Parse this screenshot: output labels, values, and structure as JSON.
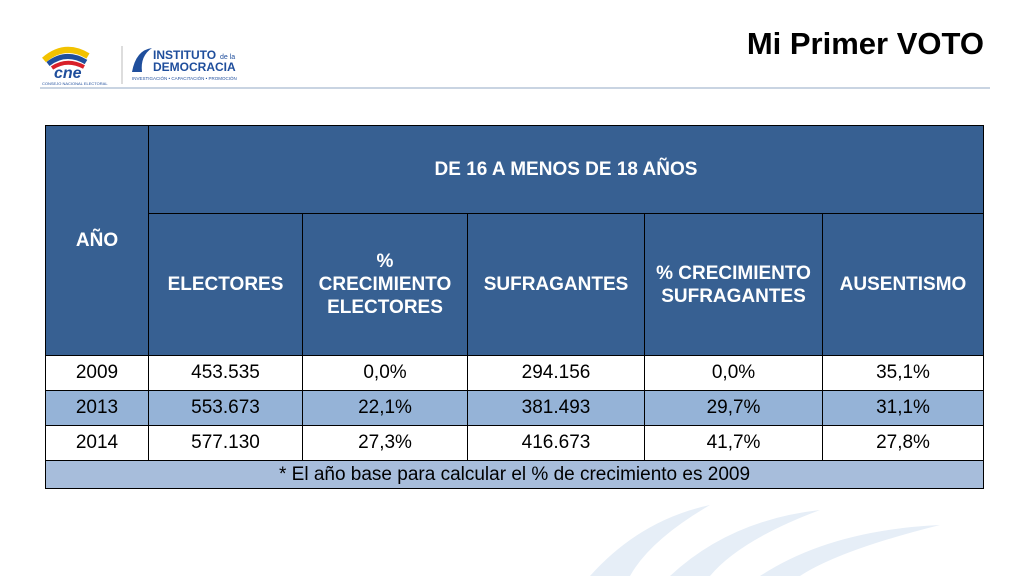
{
  "header": {
    "title": "Mi Primer VOTO",
    "logos": {
      "cne": "cne",
      "cne_sub": "CONSEJO NACIONAL ELECTORAL",
      "institute_1": "INSTITUTO",
      "institute_de": "de la",
      "institute_2": "DEMOCRACIA",
      "institute_sub": "INVESTIGACIÓN • CAPACITACIÓN • PROMOCIÓN"
    }
  },
  "table": {
    "year_header": "AÑO",
    "group_header": "DE 16 A MENOS DE 18 AÑOS",
    "columns": [
      [
        "ELECTORES"
      ],
      [
        "%",
        "CRECIMIENTO",
        "ELECTORES"
      ],
      [
        "SUFRAGANTES"
      ],
      [
        "% CRECIMIENTO",
        "SUFRAGANTES"
      ],
      [
        "AUSENTISMO"
      ]
    ],
    "rows": [
      [
        "2009",
        "453.535",
        "0,0%",
        "294.156",
        "0,0%",
        "35,1%"
      ],
      [
        "2013",
        "553.673",
        "22,1%",
        "381.493",
        "29,7%",
        "31,1%"
      ],
      [
        "2014",
        "577.130",
        "27,3%",
        "416.673",
        "41,7%",
        "27,8%"
      ]
    ],
    "footnote": "* El año base para calcular el % de crecimiento es 2009"
  }
}
